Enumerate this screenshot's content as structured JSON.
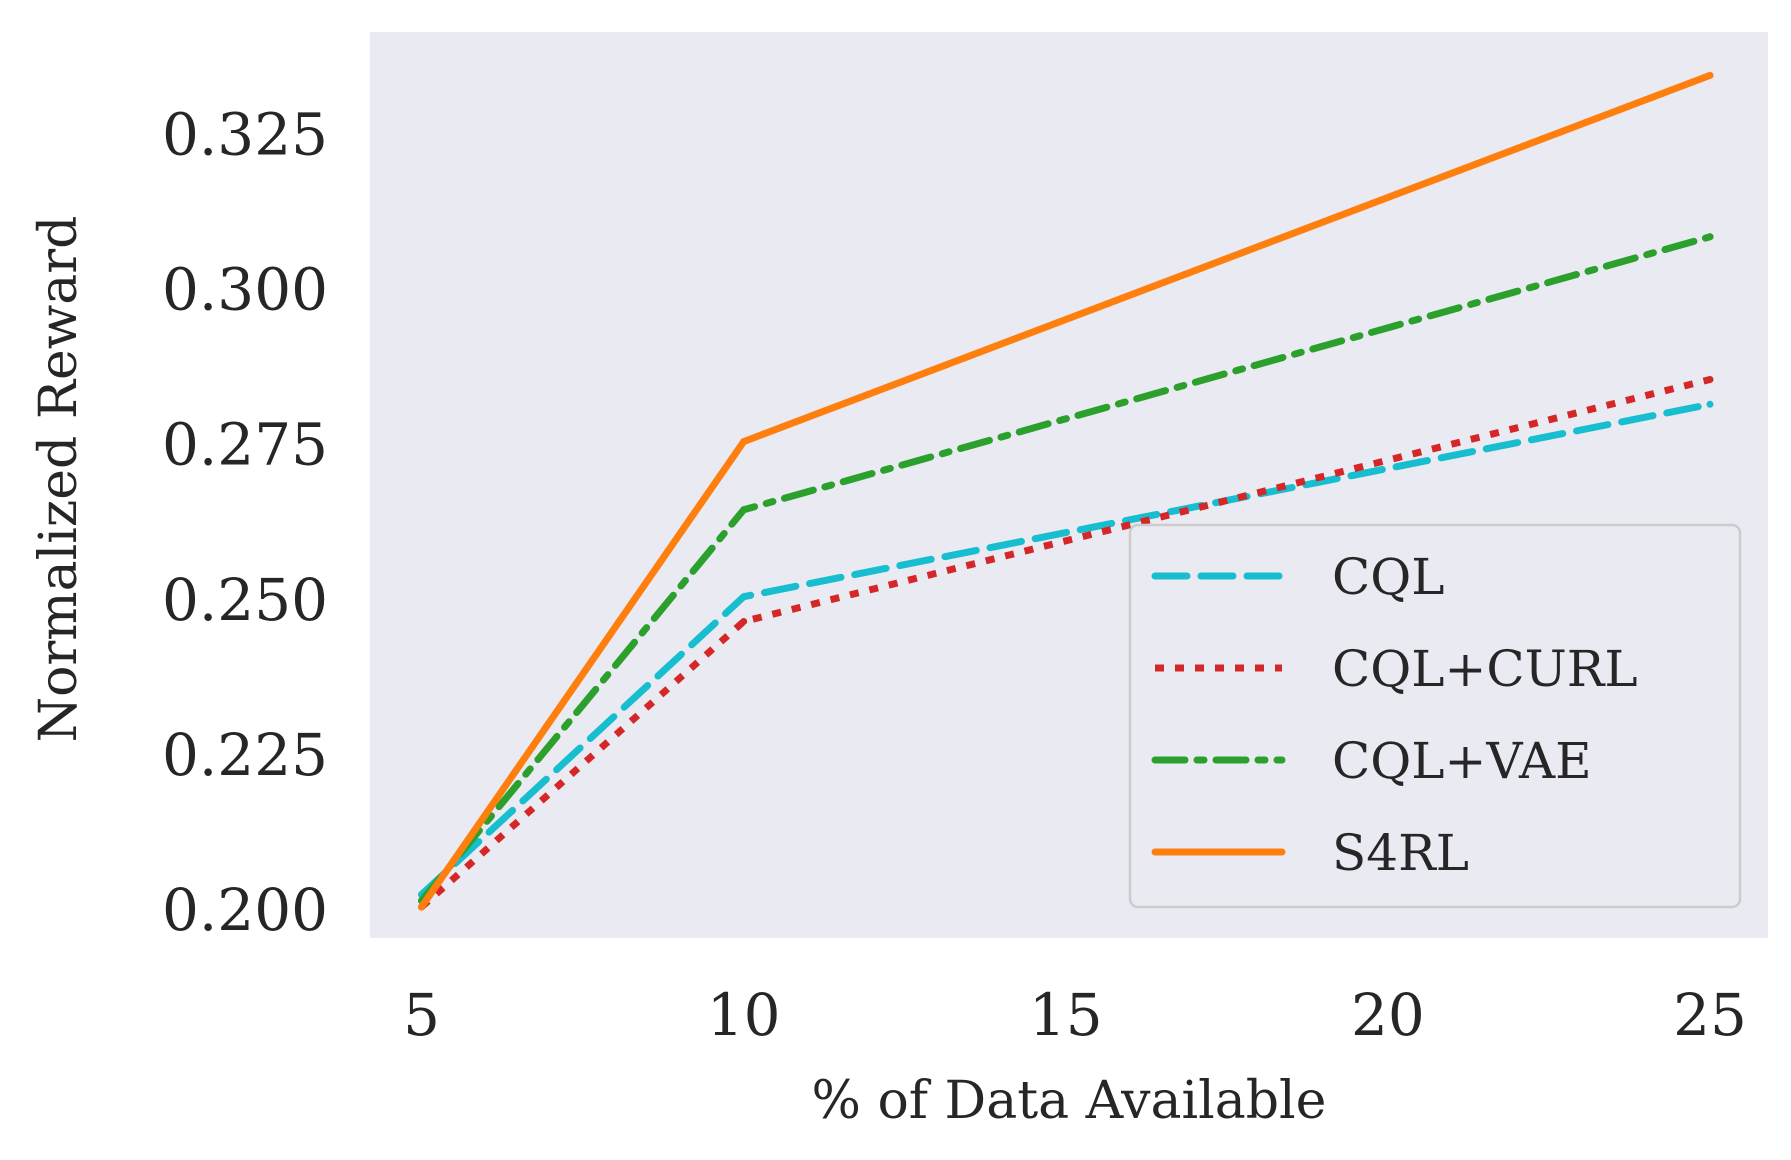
{
  "chart_data": {
    "type": "line",
    "title": "",
    "xlabel": "% of Data Available",
    "ylabel": "Normalized Reward",
    "x": [
      5,
      10,
      25
    ],
    "xticks": [
      "5",
      "10",
      "15",
      "20",
      "25"
    ],
    "yticks": [
      "0.200",
      "0.225",
      "0.250",
      "0.275",
      "0.300",
      "0.325"
    ],
    "xlim": [
      4.2,
      25.9
    ],
    "ylim": [
      0.1955,
      0.3415
    ],
    "grid": false,
    "legend_position": "lower-right",
    "background_color": "#eaeaf2",
    "series": [
      {
        "name": "CQL",
        "values": [
          0.2025,
          0.2505,
          0.2815
        ],
        "color": "#17becf",
        "style": "dashed"
      },
      {
        "name": "CQL+CURL",
        "values": [
          0.2005,
          0.2465,
          0.2855
        ],
        "color": "#d62728",
        "style": "dotted"
      },
      {
        "name": "CQL+VAE",
        "values": [
          0.2015,
          0.2645,
          0.3085
        ],
        "color": "#2ca02c",
        "style": "dashdot"
      },
      {
        "name": "S4RL",
        "values": [
          0.2005,
          0.2755,
          0.3345
        ],
        "color": "#ff7f0e",
        "style": "solid"
      }
    ]
  }
}
